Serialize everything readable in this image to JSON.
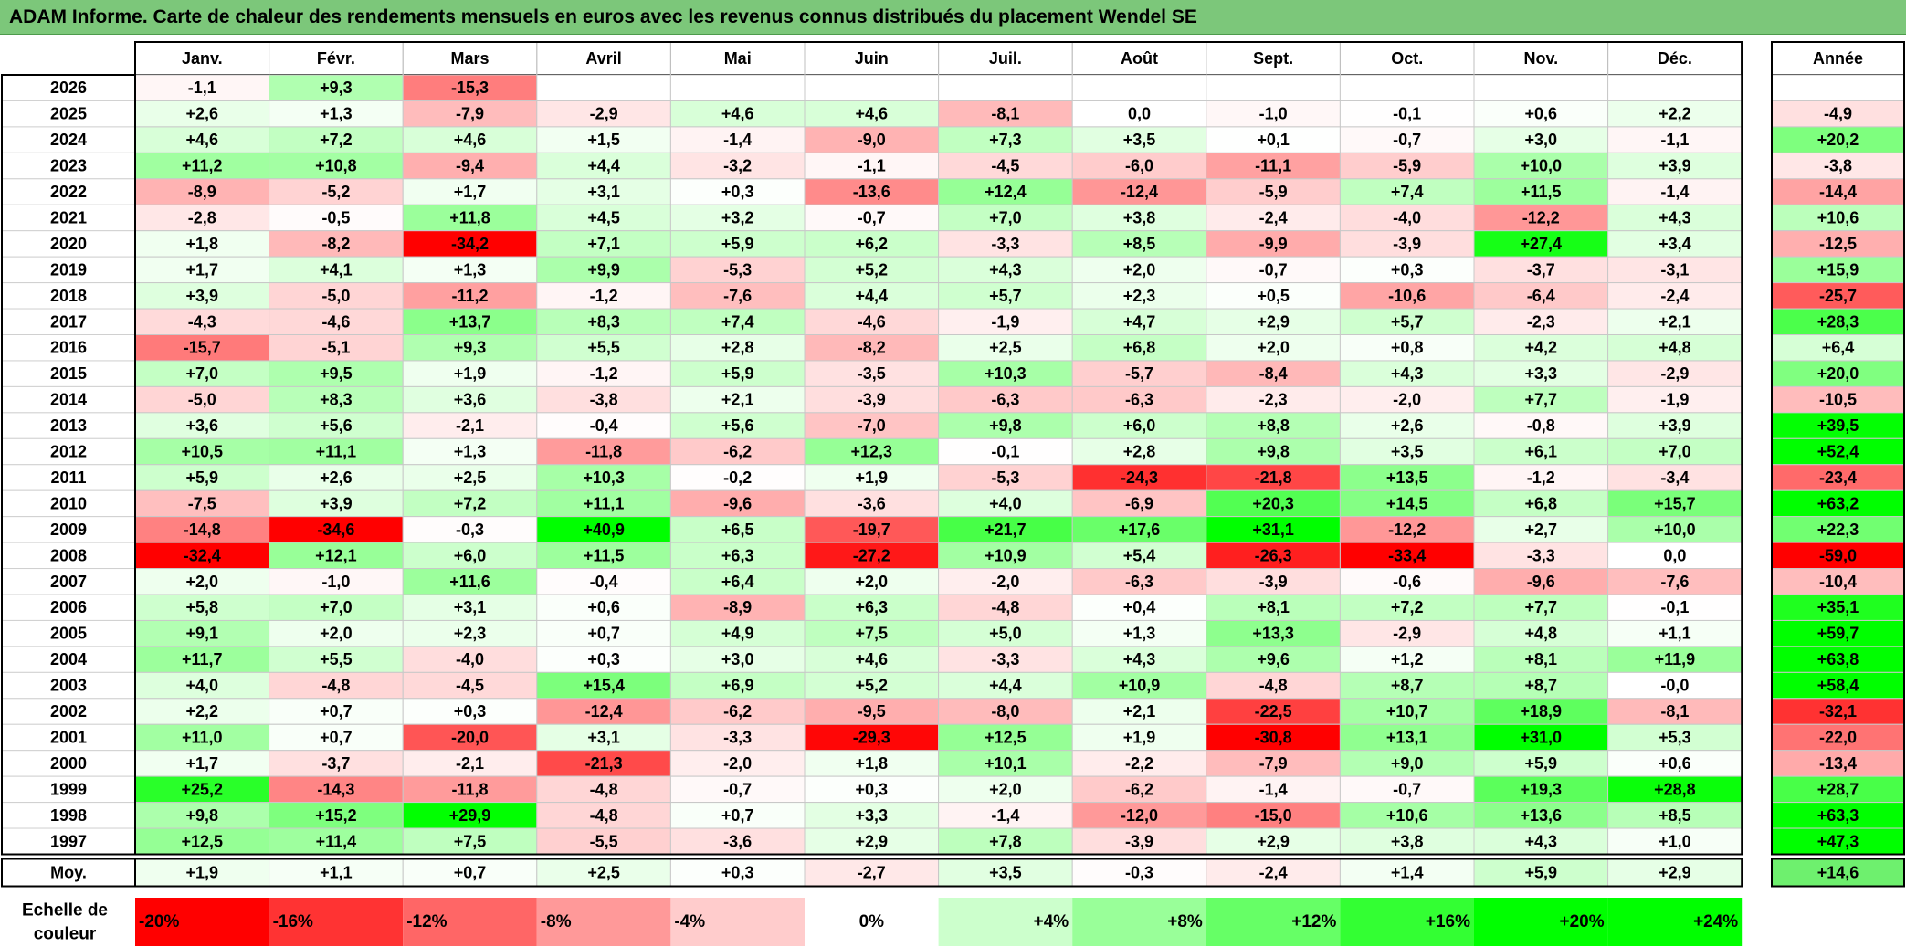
{
  "title": "ADAM Informe. Carte de chaleur des rendements mensuels en euros avec les revenus connus distribués du placement Wendel SE",
  "chart_data": {
    "type": "heatmap",
    "columns": [
      "Janv.",
      "Févr.",
      "Mars",
      "Avril",
      "Mai",
      "Juin",
      "Juil.",
      "Août",
      "Sept.",
      "Oct.",
      "Nov.",
      "Déc."
    ],
    "year_column_label": "Année",
    "average_label": "Moy.",
    "scale_label": "Echelle de couleur",
    "rows": [
      {
        "year": "2026",
        "months": [
          "-1,1",
          "+9,3",
          "-15,3",
          "",
          "",
          "",
          "",
          "",
          "",
          "",
          "",
          ""
        ],
        "annual": ""
      },
      {
        "year": "2025",
        "months": [
          "+2,6",
          "+1,3",
          "-7,9",
          "-2,9",
          "+4,6",
          "+4,6",
          "-8,1",
          "0,0",
          "-1,0",
          "-0,1",
          "+0,6",
          "+2,2"
        ],
        "annual": "-4,9"
      },
      {
        "year": "2024",
        "months": [
          "+4,6",
          "+7,2",
          "+4,6",
          "+1,5",
          "-1,4",
          "-9,0",
          "+7,3",
          "+3,5",
          "+0,1",
          "-0,7",
          "+3,0",
          "-1,1"
        ],
        "annual": "+20,2"
      },
      {
        "year": "2023",
        "months": [
          "+11,2",
          "+10,8",
          "-9,4",
          "+4,4",
          "-3,2",
          "-1,1",
          "-4,5",
          "-6,0",
          "-11,1",
          "-5,9",
          "+10,0",
          "+3,9"
        ],
        "annual": "-3,8"
      },
      {
        "year": "2022",
        "months": [
          "-8,9",
          "-5,2",
          "+1,7",
          "+3,1",
          "+0,3",
          "-13,6",
          "+12,4",
          "-12,4",
          "-5,9",
          "+7,4",
          "+11,5",
          "-1,4"
        ],
        "annual": "-14,4"
      },
      {
        "year": "2021",
        "months": [
          "-2,8",
          "-0,5",
          "+11,8",
          "+4,5",
          "+3,2",
          "-0,7",
          "+7,0",
          "+3,8",
          "-2,4",
          "-4,0",
          "-12,2",
          "+4,3"
        ],
        "annual": "+10,6"
      },
      {
        "year": "2020",
        "months": [
          "+1,8",
          "-8,2",
          "-34,2",
          "+7,1",
          "+5,9",
          "+6,2",
          "-3,3",
          "+8,5",
          "-9,9",
          "-3,9",
          "+27,4",
          "+3,4"
        ],
        "annual": "-12,5"
      },
      {
        "year": "2019",
        "months": [
          "+1,7",
          "+4,1",
          "+1,3",
          "+9,9",
          "-5,3",
          "+5,2",
          "+4,3",
          "+2,0",
          "-0,7",
          "+0,3",
          "-3,7",
          "-3,1"
        ],
        "annual": "+15,9"
      },
      {
        "year": "2018",
        "months": [
          "+3,9",
          "-5,0",
          "-11,2",
          "-1,2",
          "-7,6",
          "+4,4",
          "+5,7",
          "+2,3",
          "+0,5",
          "-10,6",
          "-6,4",
          "-2,4"
        ],
        "annual": "-25,7"
      },
      {
        "year": "2017",
        "months": [
          "-4,3",
          "-4,6",
          "+13,7",
          "+8,3",
          "+7,4",
          "-4,6",
          "-1,9",
          "+4,7",
          "+2,9",
          "+5,7",
          "-2,3",
          "+2,1"
        ],
        "annual": "+28,3"
      },
      {
        "year": "2016",
        "months": [
          "-15,7",
          "-5,1",
          "+9,3",
          "+5,5",
          "+2,8",
          "-8,2",
          "+2,5",
          "+6,8",
          "+2,0",
          "+0,8",
          "+4,2",
          "+4,8"
        ],
        "annual": "+6,4"
      },
      {
        "year": "2015",
        "months": [
          "+7,0",
          "+9,5",
          "+1,9",
          "-1,2",
          "+5,9",
          "-3,5",
          "+10,3",
          "-5,7",
          "-8,4",
          "+4,3",
          "+3,3",
          "-2,9"
        ],
        "annual": "+20,0"
      },
      {
        "year": "2014",
        "months": [
          "-5,0",
          "+8,3",
          "+3,6",
          "-3,8",
          "+2,1",
          "-3,9",
          "-6,3",
          "-6,3",
          "-2,3",
          "-2,0",
          "+7,7",
          "-1,9"
        ],
        "annual": "-10,5"
      },
      {
        "year": "2013",
        "months": [
          "+3,6",
          "+5,6",
          "-2,1",
          "-0,4",
          "+5,6",
          "-7,0",
          "+9,8",
          "+6,0",
          "+8,8",
          "+2,6",
          "-0,8",
          "+3,9"
        ],
        "annual": "+39,5"
      },
      {
        "year": "2012",
        "months": [
          "+10,5",
          "+11,1",
          "+1,3",
          "-11,8",
          "-6,2",
          "+12,3",
          "-0,1",
          "+2,8",
          "+9,8",
          "+3,5",
          "+6,1",
          "+7,0"
        ],
        "annual": "+52,4"
      },
      {
        "year": "2011",
        "months": [
          "+5,9",
          "+2,6",
          "+2,5",
          "+10,3",
          "-0,2",
          "+1,9",
          "-5,3",
          "-24,3",
          "-21,8",
          "+13,5",
          "-1,2",
          "-3,4"
        ],
        "annual": "-23,4"
      },
      {
        "year": "2010",
        "months": [
          "-7,5",
          "+3,9",
          "+7,2",
          "+11,1",
          "-9,6",
          "-3,6",
          "+4,0",
          "-6,9",
          "+20,3",
          "+14,5",
          "+6,8",
          "+15,7"
        ],
        "annual": "+63,2"
      },
      {
        "year": "2009",
        "months": [
          "-14,8",
          "-34,6",
          "-0,3",
          "+40,9",
          "+6,5",
          "-19,7",
          "+21,7",
          "+17,6",
          "+31,1",
          "-12,2",
          "+2,7",
          "+10,0"
        ],
        "annual": "+22,3"
      },
      {
        "year": "2008",
        "months": [
          "-32,4",
          "+12,1",
          "+6,0",
          "+11,5",
          "+6,3",
          "-27,2",
          "+10,9",
          "+5,4",
          "-26,3",
          "-33,4",
          "-3,3",
          "0,0"
        ],
        "annual": "-59,0"
      },
      {
        "year": "2007",
        "months": [
          "+2,0",
          "-1,0",
          "+11,6",
          "-0,4",
          "+6,4",
          "+2,0",
          "-2,0",
          "-6,3",
          "-3,9",
          "-0,6",
          "-9,6",
          "-7,6"
        ],
        "annual": "-10,4"
      },
      {
        "year": "2006",
        "months": [
          "+5,8",
          "+7,0",
          "+3,1",
          "+0,6",
          "-8,9",
          "+6,3",
          "-4,8",
          "+0,4",
          "+8,1",
          "+7,2",
          "+7,7",
          "-0,1"
        ],
        "annual": "+35,1"
      },
      {
        "year": "2005",
        "months": [
          "+9,1",
          "+2,0",
          "+2,3",
          "+0,7",
          "+4,9",
          "+7,5",
          "+5,0",
          "+1,3",
          "+13,3",
          "-2,9",
          "+4,8",
          "+1,1"
        ],
        "annual": "+59,7"
      },
      {
        "year": "2004",
        "months": [
          "+11,7",
          "+5,5",
          "-4,0",
          "+0,3",
          "+3,0",
          "+4,6",
          "-3,3",
          "+4,3",
          "+9,6",
          "+1,2",
          "+8,1",
          "+11,9"
        ],
        "annual": "+63,8"
      },
      {
        "year": "2003",
        "months": [
          "+4,0",
          "-4,8",
          "-4,5",
          "+15,4",
          "+6,9",
          "+5,2",
          "+4,4",
          "+10,9",
          "-4,8",
          "+8,7",
          "+8,7",
          "-0,0"
        ],
        "annual": "+58,4"
      },
      {
        "year": "2002",
        "months": [
          "+2,2",
          "+0,7",
          "+0,3",
          "-12,4",
          "-6,2",
          "-9,5",
          "-8,0",
          "+2,1",
          "-22,5",
          "+10,7",
          "+18,9",
          "-8,1"
        ],
        "annual": "-32,1"
      },
      {
        "year": "2001",
        "months": [
          "+11,0",
          "+0,7",
          "-20,0",
          "+3,1",
          "-3,3",
          "-29,3",
          "+12,5",
          "+1,9",
          "-30,8",
          "+13,1",
          "+31,0",
          "+5,3"
        ],
        "annual": "-22,0"
      },
      {
        "year": "2000",
        "months": [
          "+1,7",
          "-3,7",
          "-2,1",
          "-21,3",
          "-2,0",
          "+1,8",
          "+10,1",
          "-2,2",
          "-7,9",
          "+9,0",
          "+5,9",
          "+0,6"
        ],
        "annual": "-13,4"
      },
      {
        "year": "1999",
        "months": [
          "+25,2",
          "-14,3",
          "-11,8",
          "-4,8",
          "-0,7",
          "+0,3",
          "+2,0",
          "-6,2",
          "-1,4",
          "-0,7",
          "+19,3",
          "+28,8"
        ],
        "annual": "+28,7"
      },
      {
        "year": "1998",
        "months": [
          "+9,8",
          "+15,2",
          "+29,9",
          "-4,8",
          "+0,7",
          "+3,3",
          "-1,4",
          "-12,0",
          "-15,0",
          "+10,6",
          "+13,6",
          "+8,5"
        ],
        "annual": "+63,3"
      },
      {
        "year": "1997",
        "months": [
          "+12,5",
          "+11,4",
          "+7,5",
          "-5,5",
          "-3,6",
          "+2,9",
          "+7,8",
          "-3,9",
          "+2,9",
          "+3,8",
          "+4,3",
          "+1,0"
        ],
        "annual": "+47,3"
      }
    ],
    "average": {
      "months": [
        "+1,9",
        "+1,1",
        "+0,7",
        "+2,5",
        "+0,3",
        "-2,7",
        "+3,5",
        "-0,3",
        "-2,4",
        "+1,4",
        "+5,9",
        "+2,9"
      ],
      "annual": "+14,6"
    },
    "scale": [
      "-20%",
      "-16%",
      "-12%",
      "-8%",
      "-4%",
      "0%",
      "+4%",
      "+8%",
      "+12%",
      "+16%",
      "+20%",
      "+24%"
    ],
    "colors": {
      "negative_max": "#ff0000",
      "positive_max": "#00ff00",
      "neutral": "#ffffff",
      "title_bar": "#7cc77a"
    }
  }
}
